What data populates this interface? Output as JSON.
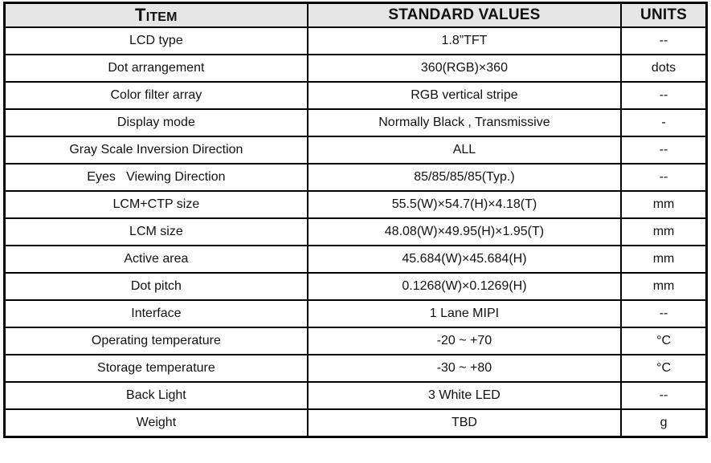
{
  "page": {
    "background": "#ffffff",
    "text_color": "#111111",
    "border_color": "#000000"
  },
  "table": {
    "title_semantic": "LCD module specifications table",
    "header": {
      "item": "TITEM",
      "values": "STANDARD VALUES",
      "units": "UNITS",
      "background": "#e6e6e6"
    },
    "rows": [
      {
        "item": "LCD type",
        "value": "1.8”TFT",
        "unit": "--"
      },
      {
        "item": "Dot arrangement",
        "value": "360(RGB)×360",
        "unit": "dots"
      },
      {
        "item": "Color filter array",
        "value": "RGB vertical stripe",
        "unit": "--"
      },
      {
        "item": "Display mode",
        "value": "Normally Black , Transmissive",
        "unit": "-"
      },
      {
        "item": "Gray Scale Inversion Direction",
        "value": "ALL",
        "unit": "--"
      },
      {
        "item": "Eyes   Viewing Direction",
        "value": "85/85/85/85(Typ.)",
        "unit": "--"
      },
      {
        "item": "LCM+CTP size",
        "value": "55.5(W)×54.7(H)×4.18(T)",
        "unit": "mm"
      },
      {
        "item": "LCM size",
        "value": "48.08(W)×49.95(H)×1.95(T)",
        "unit": "mm"
      },
      {
        "item": "Active area",
        "value": "45.684(W)×45.684(H)",
        "unit": "mm"
      },
      {
        "item": "Dot pitch",
        "value": "0.1268(W)×0.1269(H)",
        "unit": "mm"
      },
      {
        "item": "Interface",
        "value": "1 Lane MIPI",
        "unit": "--"
      },
      {
        "item": "Operating temperature",
        "value": "-20 ~ +70",
        "unit": "°C"
      },
      {
        "item": "Storage temperature",
        "value": "-30 ~ +80",
        "unit": "°C"
      },
      {
        "item": "Back Light",
        "value": "3 White LED",
        "unit": "--"
      },
      {
        "item": "Weight",
        "value": "TBD",
        "unit": "g"
      }
    ]
  }
}
